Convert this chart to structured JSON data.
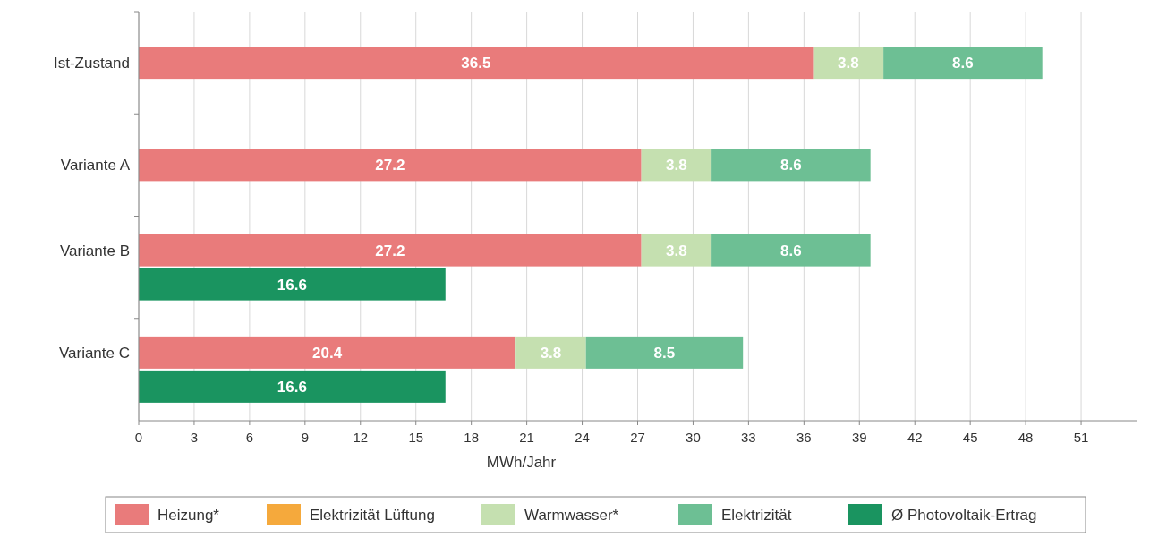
{
  "chart_data": {
    "type": "bar",
    "orientation": "horizontal",
    "stacked": true,
    "categories": [
      "Ist-Zustand",
      null,
      "Variante A",
      null,
      "Variante B",
      null,
      "Variante C",
      null
    ],
    "series": [
      {
        "name": "Heizung*",
        "color": "#e97b7b",
        "values": [
          36.5,
          null,
          27.2,
          null,
          27.2,
          null,
          20.4,
          null
        ]
      },
      {
        "name": "Elektrizität Lüftung",
        "color": "#f5a93c",
        "values": [
          null,
          null,
          null,
          null,
          null,
          null,
          null,
          null
        ]
      },
      {
        "name": "Warmwasser*",
        "color": "#c5e0b0",
        "values": [
          3.8,
          null,
          3.8,
          null,
          3.8,
          null,
          3.8,
          null
        ]
      },
      {
        "name": "Elektrizität",
        "color": "#6dbf94",
        "values": [
          8.6,
          null,
          8.6,
          null,
          8.6,
          null,
          8.5,
          null
        ]
      },
      {
        "name": "Ø Photovoltaik-Ertrag",
        "color": "#1a9460",
        "values": [
          null,
          null,
          null,
          null,
          null,
          16.6,
          null,
          16.6
        ]
      }
    ],
    "xlabel": "MWh/Jahr",
    "xlim": [
      0,
      54
    ],
    "xticks": [
      0,
      3,
      6,
      9,
      12,
      15,
      18,
      21,
      24,
      27,
      30,
      33,
      36,
      39,
      42,
      45,
      48,
      51
    ],
    "grid": "x",
    "legend": "bottom",
    "data_labels": true
  }
}
